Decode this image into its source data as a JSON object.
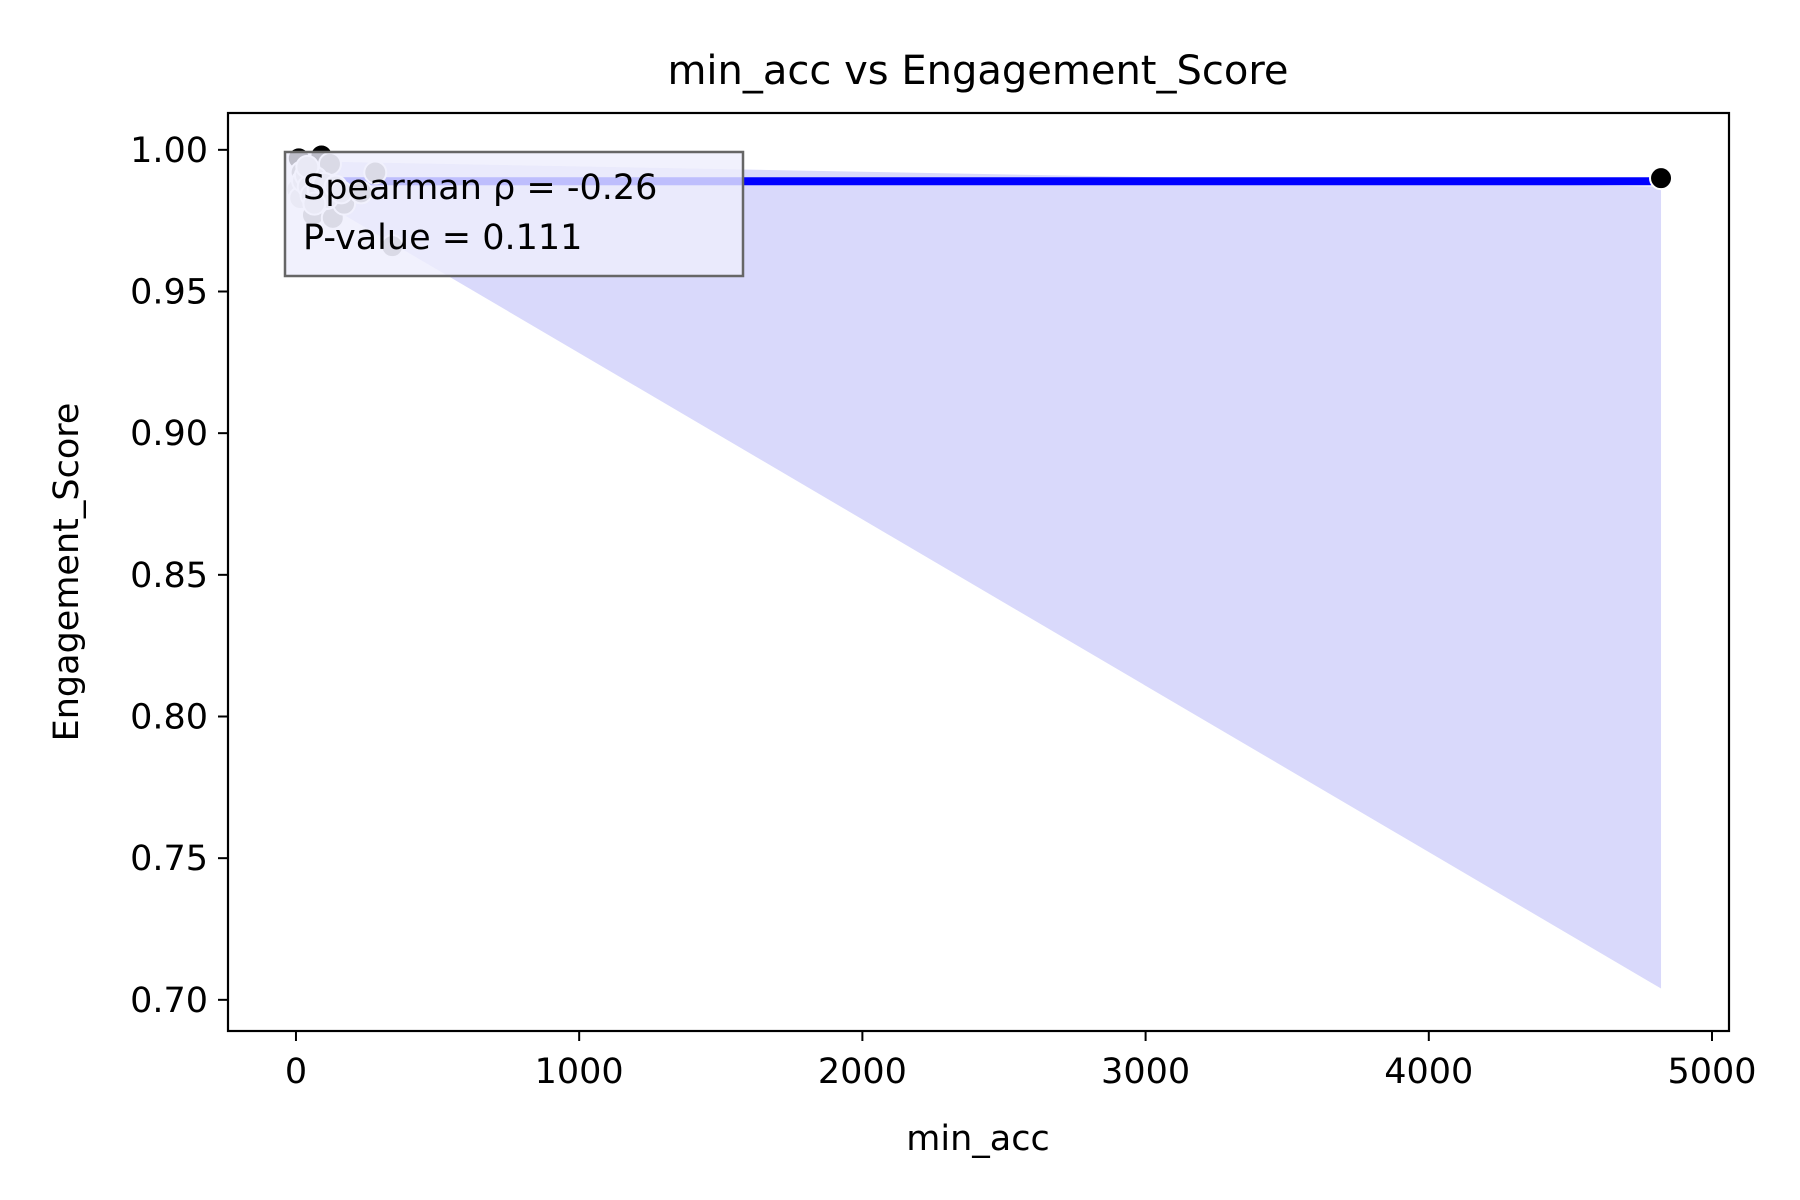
{
  "chart_data": {
    "type": "scatter",
    "title": "min_acc vs Engagement_Score",
    "xlabel": "min_acc",
    "ylabel": "Engagement_Score",
    "xlim": [
      -240,
      5060
    ],
    "ylim": [
      0.689,
      1.013
    ],
    "x_ticks": [
      0,
      1000,
      2000,
      3000,
      4000,
      5000
    ],
    "x_tick_labels": [
      "0",
      "1000",
      "2000",
      "3000",
      "4000",
      "5000"
    ],
    "y_ticks": [
      0.7,
      0.75,
      0.8,
      0.85,
      0.9,
      0.95,
      1.0
    ],
    "y_tick_labels": [
      "0.70",
      "0.75",
      "0.80",
      "0.85",
      "0.90",
      "0.95",
      "1.00"
    ],
    "grid": false,
    "colors": {
      "regression_line": "#0000ff",
      "confidence_band": "#d9d9fb",
      "point_dark": "#000000",
      "point_grey": "#8c8c8c",
      "point_light": "#d4d4d4",
      "stats_box_fill": "#eeeefc",
      "stats_box_border": "#666666"
    },
    "regression_line": {
      "x": [
        0,
        4820
      ],
      "y": [
        0.9889,
        0.9889
      ]
    },
    "confidence_band": {
      "x": [
        0,
        4820
      ],
      "upper": [
        0.996,
        0.987
      ],
      "lower": [
        0.987,
        0.704
      ]
    },
    "series": [
      {
        "points": [
          {
            "x": 10,
            "y": 0.997,
            "tone": "dark"
          },
          {
            "x": 90,
            "y": 0.998,
            "tone": "dark"
          },
          {
            "x": 4820,
            "y": 0.99,
            "tone": "dark"
          },
          {
            "x": 20,
            "y": 0.992,
            "tone": "grey"
          },
          {
            "x": 120,
            "y": 0.995,
            "tone": "grey"
          },
          {
            "x": 60,
            "y": 0.977,
            "tone": "grey"
          },
          {
            "x": 130,
            "y": 0.976,
            "tone": "grey"
          },
          {
            "x": 280,
            "y": 0.992,
            "tone": "grey"
          },
          {
            "x": 340,
            "y": 0.966,
            "tone": "grey"
          },
          {
            "x": 170,
            "y": 0.981,
            "tone": "grey"
          },
          {
            "x": 230,
            "y": 0.985,
            "tone": "grey"
          },
          {
            "x": 5,
            "y": 0.986,
            "tone": "light"
          },
          {
            "x": 15,
            "y": 0.983,
            "tone": "light"
          },
          {
            "x": 25,
            "y": 0.989,
            "tone": "light"
          },
          {
            "x": 35,
            "y": 0.991,
            "tone": "light"
          },
          {
            "x": 45,
            "y": 0.987,
            "tone": "light"
          },
          {
            "x": 55,
            "y": 0.984,
            "tone": "light"
          },
          {
            "x": 70,
            "y": 0.99,
            "tone": "light"
          },
          {
            "x": 80,
            "y": 0.986,
            "tone": "light"
          },
          {
            "x": 100,
            "y": 0.988,
            "tone": "light"
          },
          {
            "x": 110,
            "y": 0.983,
            "tone": "light"
          },
          {
            "x": 140,
            "y": 0.987,
            "tone": "light"
          },
          {
            "x": 160,
            "y": 0.985,
            "tone": "light"
          },
          {
            "x": 40,
            "y": 0.994,
            "tone": "light"
          },
          {
            "x": 65,
            "y": 0.981,
            "tone": "light"
          }
        ]
      }
    ],
    "annotation": {
      "lines": [
        "Spearman ρ = -0.26",
        "P-value = 0.111"
      ],
      "placement": "top-left"
    }
  }
}
